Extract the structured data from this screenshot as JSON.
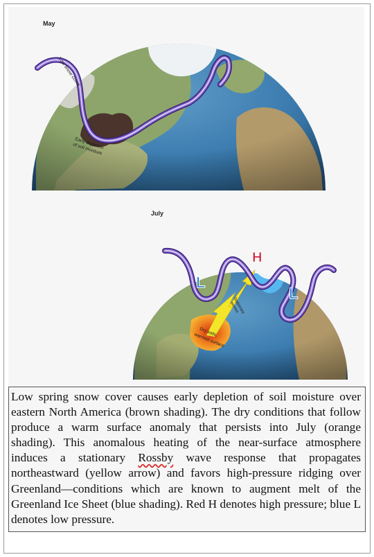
{
  "figure": {
    "panel_may": {
      "label": "May",
      "annotations": {
        "snow": "Low snow cover",
        "moisture_line1": "Early depletion",
        "moisture_line2": "of soil moisture"
      }
    },
    "panel_july": {
      "label": "July",
      "high_marker": "H",
      "low_marker_west": "L",
      "low_marker_east": "L",
      "annotations": {
        "rossby_line1": "Stationary",
        "rossby_line2": "waves",
        "soil_line1": "Dry soils,",
        "soil_line2": "warmed surface"
      }
    },
    "colors": {
      "jet_stream": "#6a49b0",
      "high_pressure": "#c8102e",
      "low_pressure": "#2f7fd0",
      "soil_moisture": "#4a342b",
      "warm_anomaly": "#e7781f",
      "rossby_arrow": "#f3e629",
      "ice_sheet_melt": "#57b7ef"
    }
  },
  "caption": {
    "part1": "Low spring snow cover causes early depletion of soil moisture over eastern North America (brown shading). The dry conditions that follow produce a warm surface anomaly that persists into July (orange shading). This anomalous heating of the near-surface atmosphere induces a stationary ",
    "squiggle_word": "Rossby",
    "part2": " wave response that propagates northeastward (yellow arrow) and favors high-pressure ridging over Greenland—conditions which are known to augment melt of the Greenland Ice Sheet (blue shading). Red H denotes high pressure; blue L denotes low pressure."
  }
}
